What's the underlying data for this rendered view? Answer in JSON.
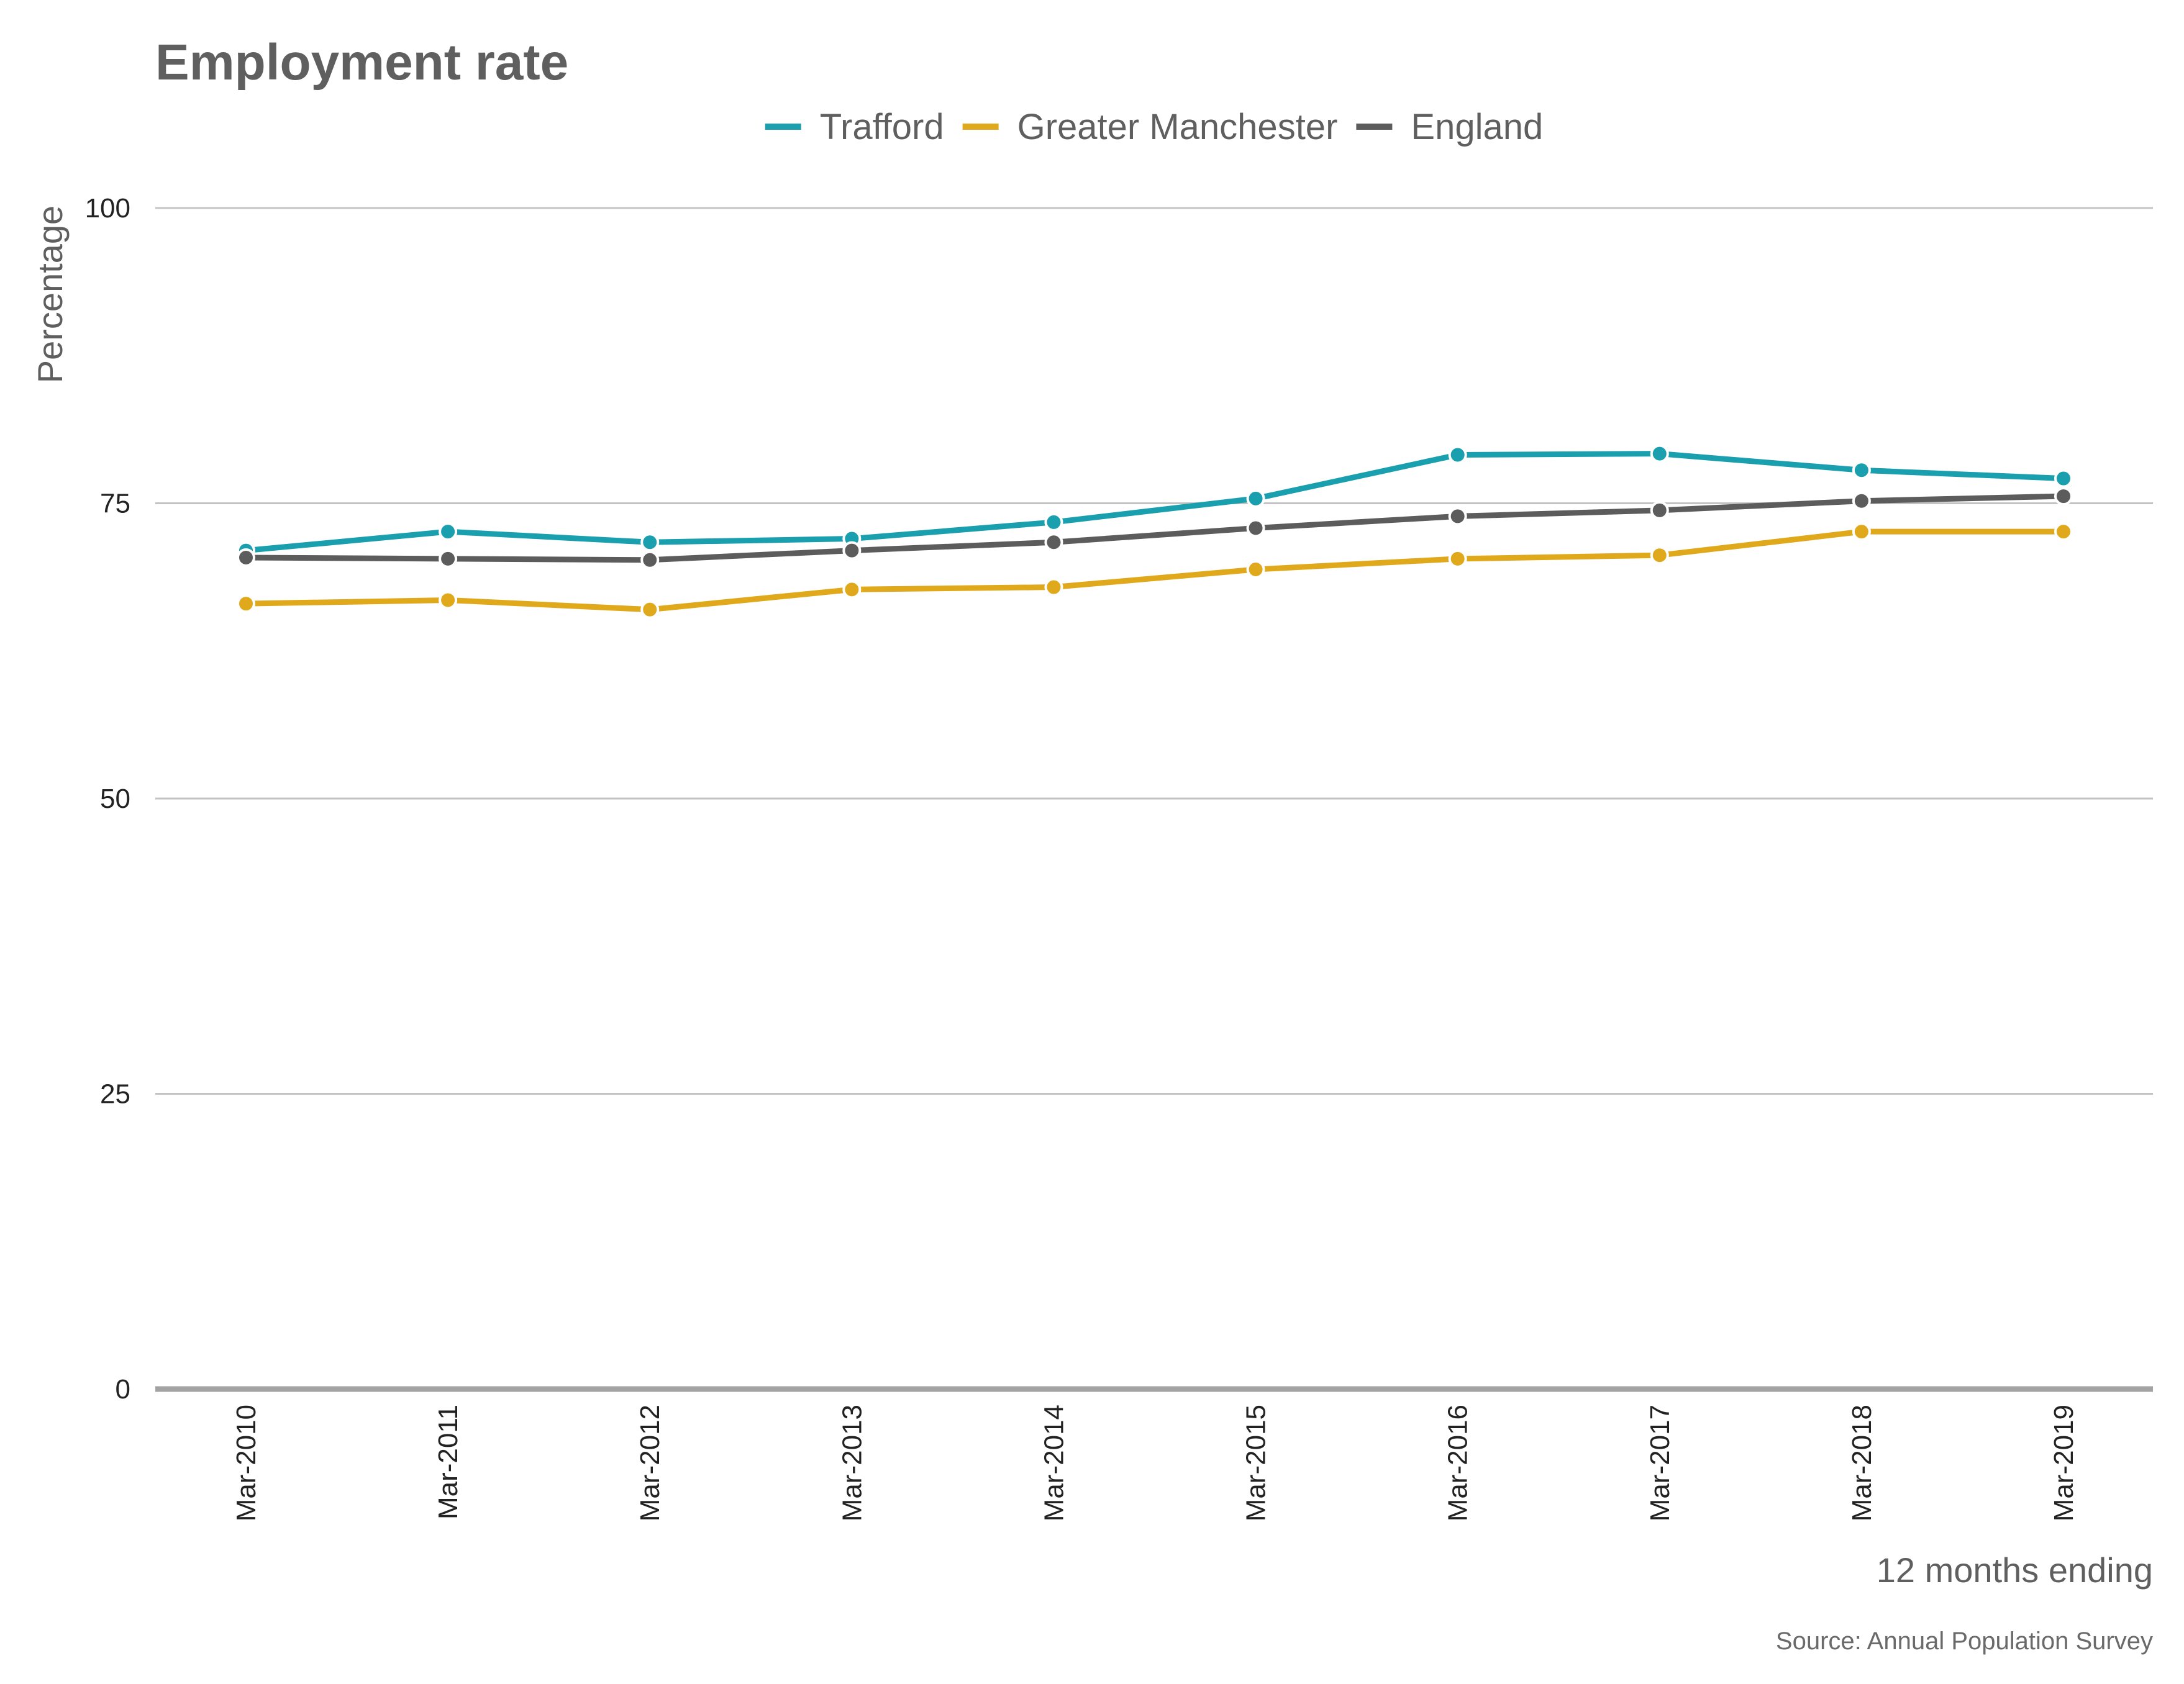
{
  "chart_data": {
    "type": "line",
    "title": "Employment rate",
    "ylabel": "Percentage",
    "xlabel": "12 months ending",
    "caption": "Source: Annual Population Survey",
    "categories": [
      "Mar-2010",
      "Mar-2011",
      "Mar-2012",
      "Mar-2013",
      "Mar-2014",
      "Mar-2015",
      "Mar-2016",
      "Mar-2017",
      "Mar-2018",
      "Mar-2019"
    ],
    "yticks": [
      "0",
      "25",
      "50",
      "75",
      "100"
    ],
    "ylim": [
      0,
      100
    ],
    "grid": "horizontal",
    "legend_position": "top",
    "series": [
      {
        "name": "Trafford",
        "color": "#1a9fae",
        "values": [
          71.0,
          72.6,
          71.7,
          72.0,
          73.4,
          75.4,
          79.1,
          79.2,
          77.8,
          77.1
        ]
      },
      {
        "name": "Greater Manchester",
        "color": "#e0a91b",
        "values": [
          66.5,
          66.8,
          66.0,
          67.7,
          67.9,
          69.4,
          70.3,
          70.6,
          72.6,
          72.6
        ]
      },
      {
        "name": "England",
        "color": "#5c5c5c",
        "values": [
          70.4,
          70.3,
          70.2,
          71.0,
          71.7,
          72.9,
          73.9,
          74.4,
          75.2,
          75.6
        ]
      }
    ]
  }
}
